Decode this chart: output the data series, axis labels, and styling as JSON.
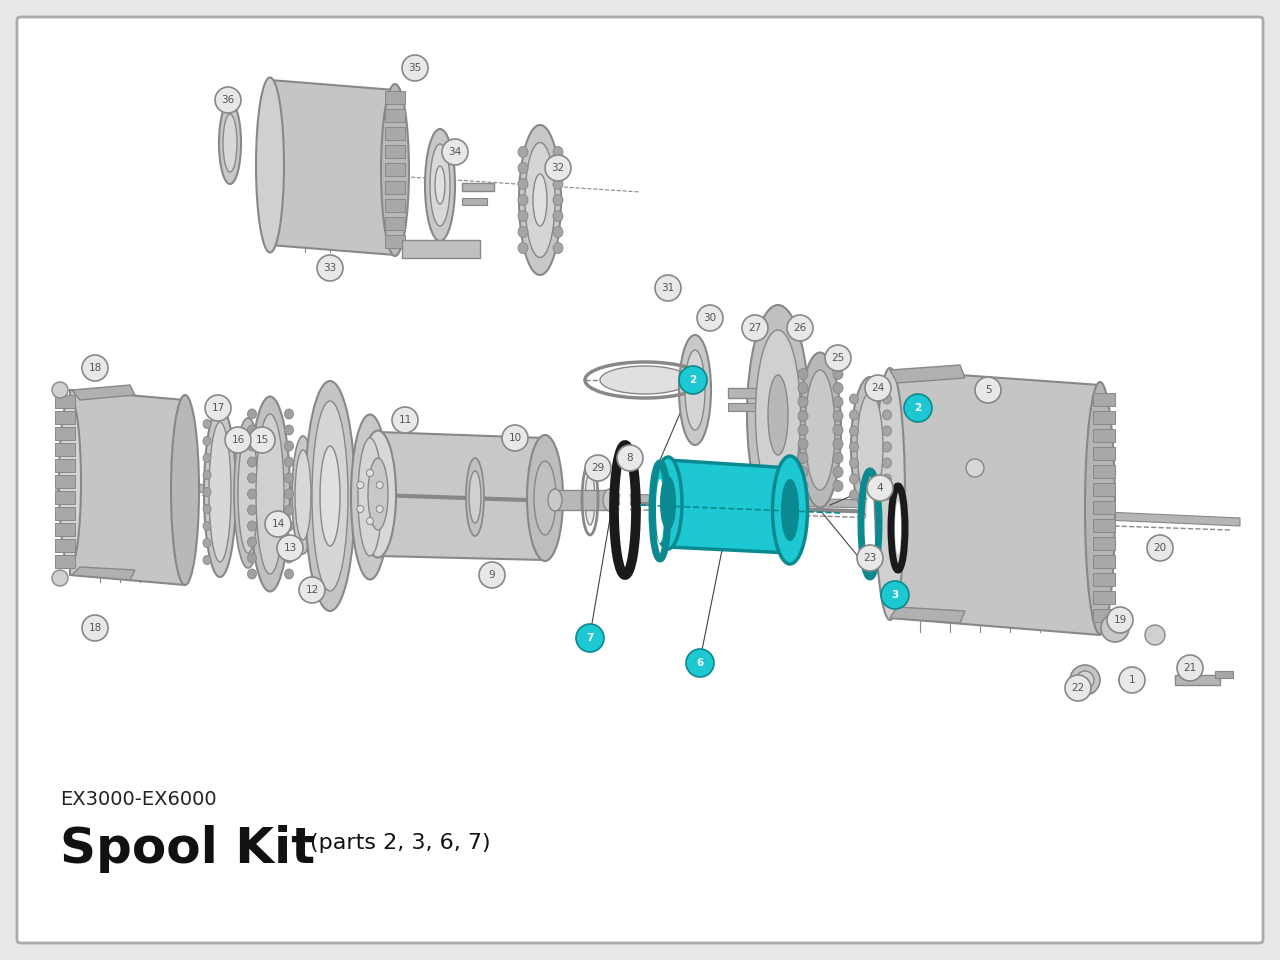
{
  "bg_color": "#e8e8e8",
  "border_color": "#aaaaaa",
  "diagram_bg": "#ffffff",
  "gray_fill": "#c8c8c8",
  "gray_edge": "#888888",
  "dark_gray_fill": "#999999",
  "dark_gray_edge": "#666666",
  "light_gray_fill": "#dcdcdc",
  "cyan_fill": "#1ec8d2",
  "cyan_edge": "#0a8a90",
  "black_fill": "#1a1a1a",
  "label_gray_bg": "#e8e8e8",
  "label_gray_edge": "#888888",
  "label_gray_text": "#555555",
  "label_cyan_bg": "#1ec8d2",
  "label_cyan_edge": "#0a8a90",
  "label_cyan_text": "#ffffff",
  "title1": "EX3000-EX6000",
  "title2": "Spool Kit",
  "title3": "(parts 2, 3, 6, 7)"
}
